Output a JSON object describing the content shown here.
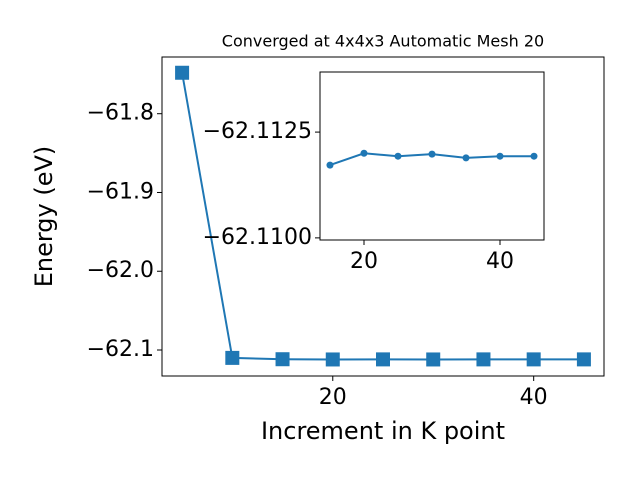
{
  "chart_data": [
    {
      "type": "line",
      "title": "Converged at 4x4x3 Automatic Mesh 20",
      "x_label": "Increment in K point",
      "y_label": "Energy (eV)",
      "marker": "square",
      "x": [
        5,
        10,
        15,
        20,
        25,
        30,
        35,
        40,
        45
      ],
      "series": [
        {
          "color": "#1f77b4",
          "values": [
            -61.748,
            -62.11,
            -62.1117,
            -62.112,
            -62.1119,
            -62.112,
            -62.1119,
            -62.1119,
            -62.1119
          ]
        }
      ],
      "xlim": [
        3,
        47
      ],
      "xticks": [
        20,
        40
      ],
      "ylim": [
        -62.133,
        -61.728
      ],
      "yticks": [
        {
          "value": -61.8,
          "label": "−61.8"
        },
        {
          "value": -61.9,
          "label": "−61.9"
        },
        {
          "value": -62.0,
          "label": "−62.0"
        },
        {
          "value": -62.1,
          "label": "−62.1"
        }
      ]
    },
    {
      "type": "line",
      "marker": "circle",
      "x": [
        15,
        20,
        25,
        30,
        35,
        40,
        45
      ],
      "series": [
        {
          "color": "#1f77b4",
          "values": [
            -62.11172,
            -62.112,
            -62.11193,
            -62.11198,
            -62.11189,
            -62.11193,
            -62.11193
          ]
        }
      ],
      "xlim": [
        13.53,
        46.47
      ],
      "xticks": [
        20,
        40
      ],
      "ylim": [
        -62.10995,
        -62.11392
      ],
      "yticks": [
        {
          "value": -62.1125,
          "label": "−62.1125"
        },
        {
          "value": -62.11,
          "label": "−62.1100"
        }
      ]
    }
  ]
}
